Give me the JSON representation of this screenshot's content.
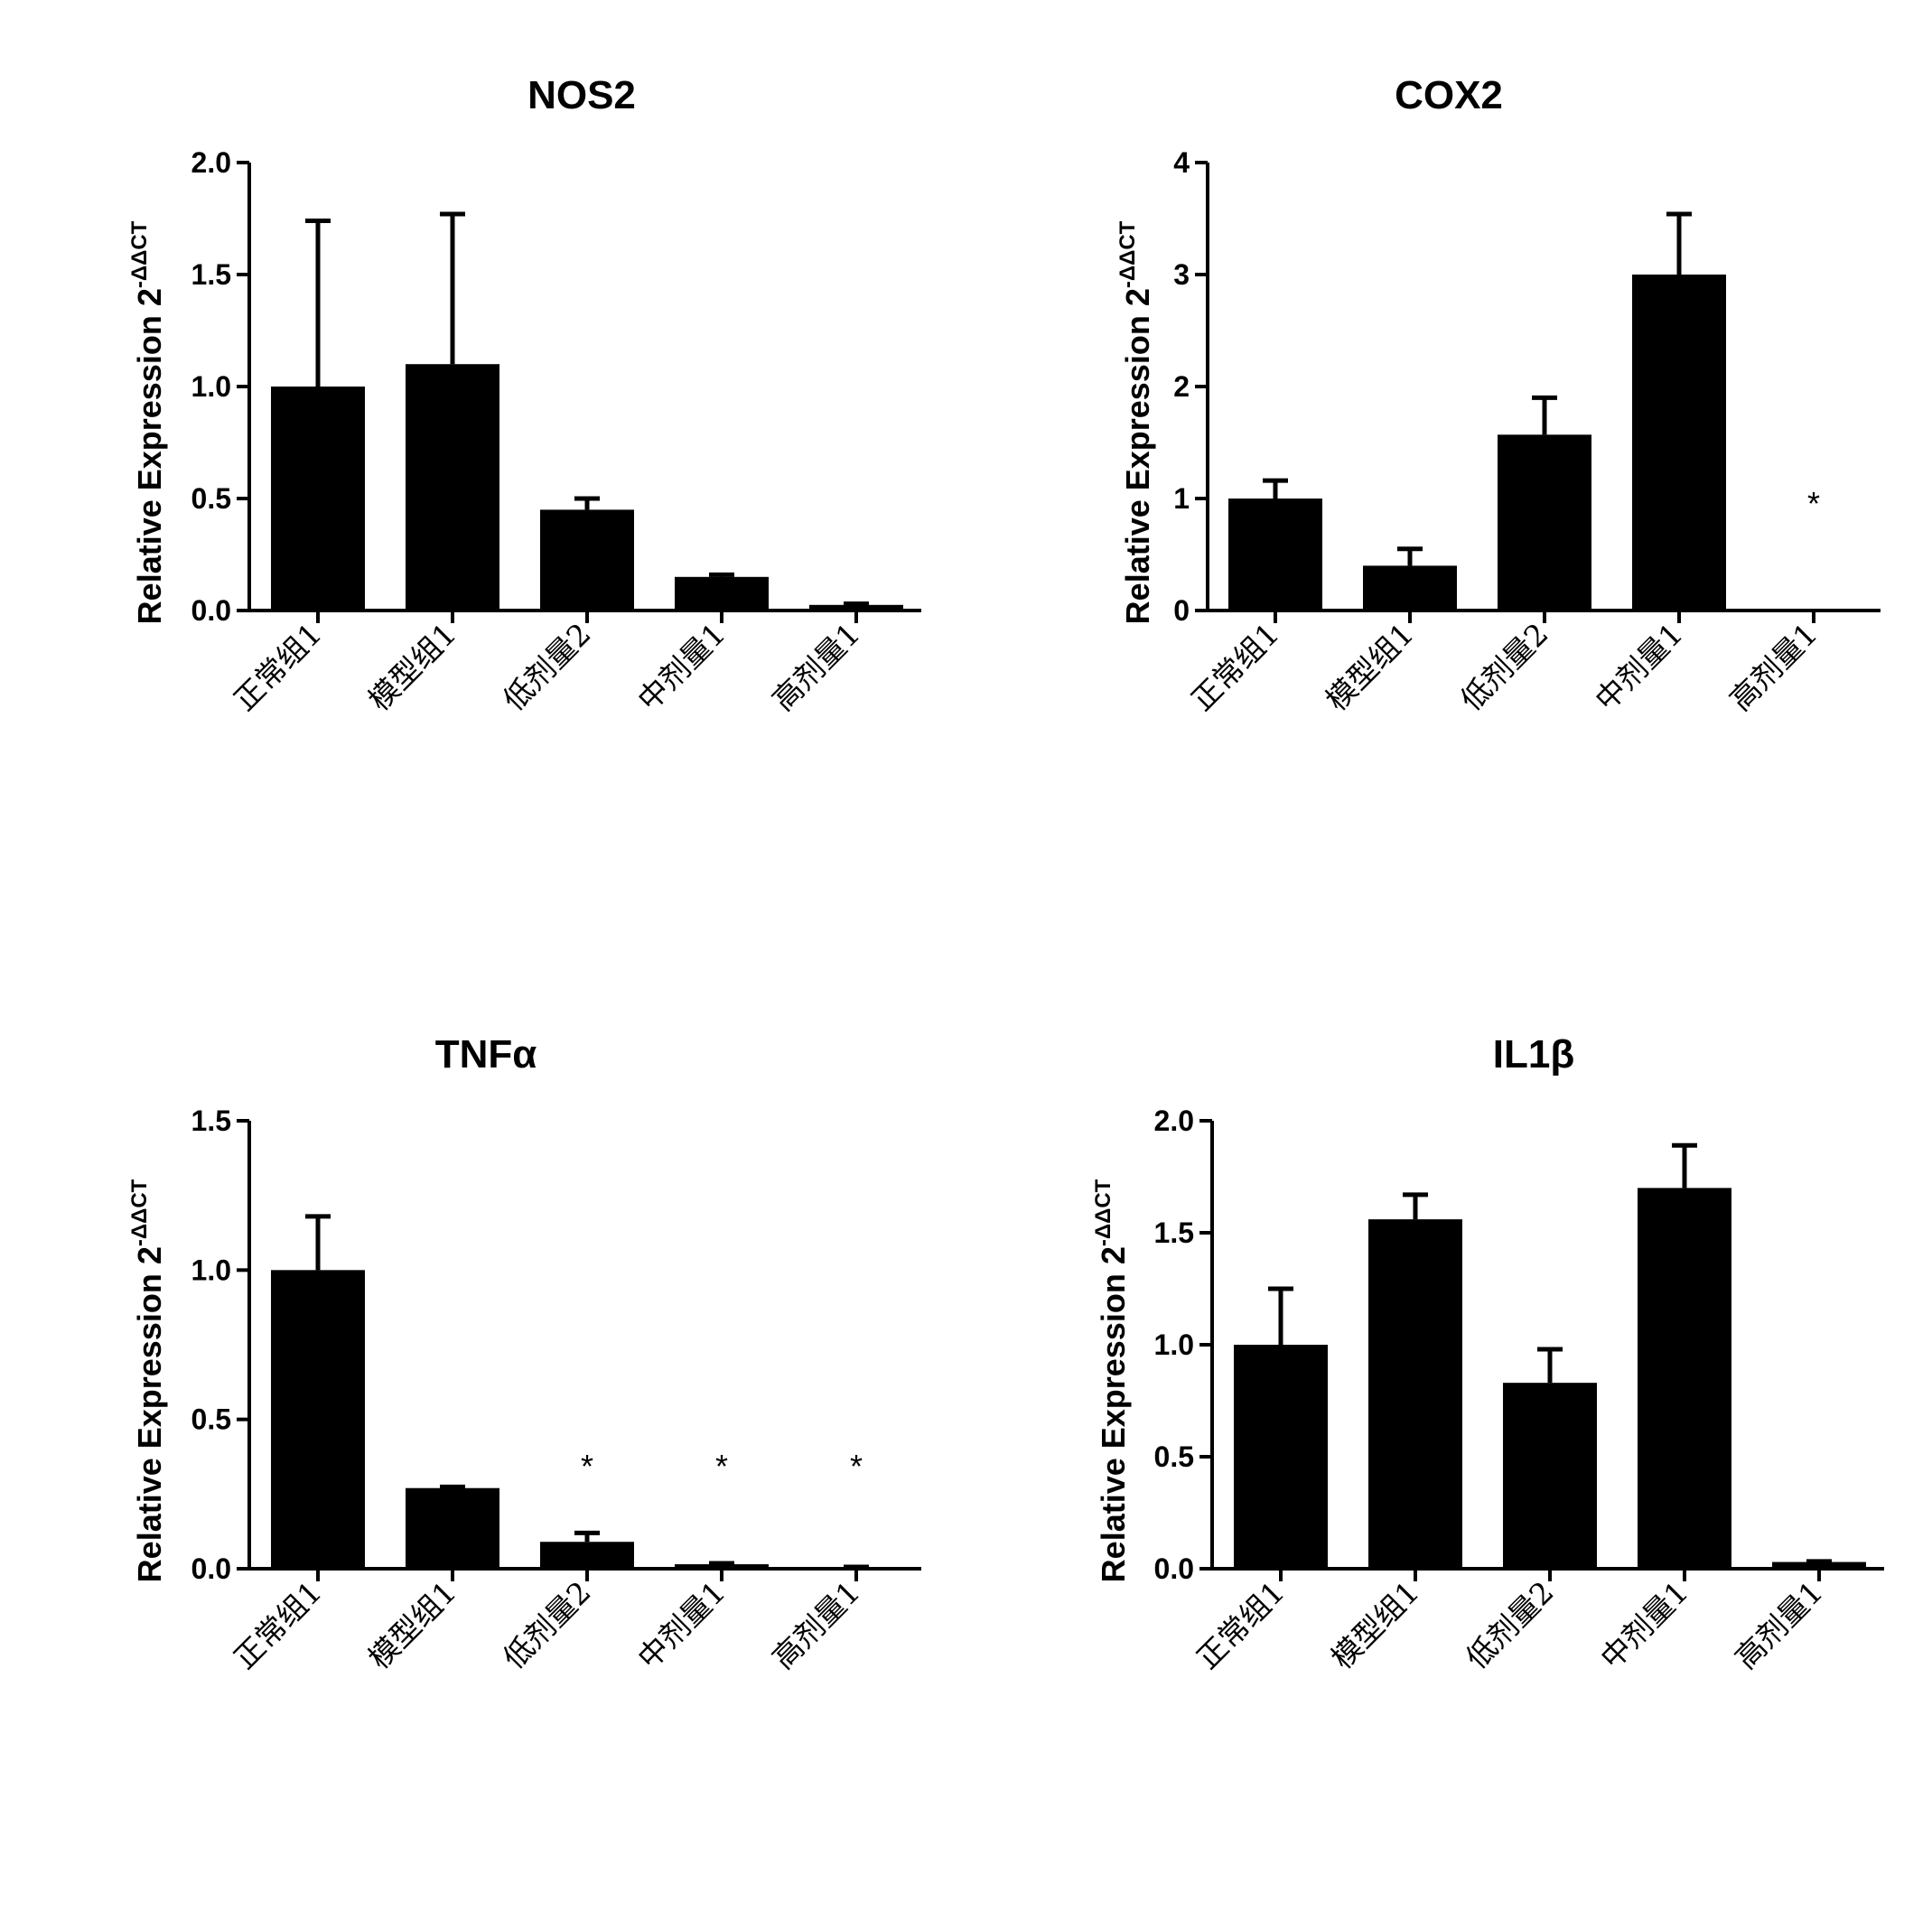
{
  "chart_data": [
    {
      "type": "bar",
      "title": "NOS2",
      "ylabel": "Relative Expression 2",
      "ylabel_superscript": "-ΔΔCT",
      "categories": [
        "正常组1",
        "模型组1",
        "低剂量2",
        "中剂量1",
        "高剂量1"
      ],
      "values": [
        1.0,
        1.1,
        0.45,
        0.15,
        0.025
      ],
      "errors": [
        0.74,
        0.67,
        0.05,
        0.01,
        0.005
      ],
      "ylim": [
        0,
        2.0
      ],
      "yticks": [
        0.0,
        0.5,
        1.0,
        1.5,
        2.0
      ],
      "ytick_labels": [
        "0.0",
        "0.5",
        "1.0",
        "1.5",
        "2.0"
      ],
      "annotations": [],
      "bar_color": "#000000"
    },
    {
      "type": "bar",
      "title": "COX2",
      "ylabel": "Relative Expression 2",
      "ylabel_superscript": "-ΔΔCT",
      "categories": [
        "正常组1",
        "模型组1",
        "低剂量2",
        "中剂量1",
        "高剂量1"
      ],
      "values": [
        1.0,
        0.4,
        1.57,
        3.0,
        0
      ],
      "errors": [
        0.16,
        0.15,
        0.33,
        0.54,
        0
      ],
      "ylim": [
        0,
        4
      ],
      "yticks": [
        0,
        1,
        2,
        3,
        4
      ],
      "ytick_labels": [
        "0",
        "1",
        "2",
        "3",
        "4"
      ],
      "annotations": [
        {
          "index": 4,
          "text": "*",
          "y": 1.0
        }
      ],
      "bar_color": "#000000"
    },
    {
      "type": "bar",
      "title": "TNFα",
      "ylabel": "Relative Expression 2",
      "ylabel_superscript": "-ΔΔCT",
      "categories": [
        "正常组1",
        "模型组1",
        "低剂量2",
        "中剂量1",
        "高剂量1"
      ],
      "values": [
        1.0,
        0.27,
        0.09,
        0.015,
        0.004
      ],
      "errors": [
        0.18,
        0.004,
        0.03,
        0.003,
        0.002
      ],
      "ylim": [
        0,
        1.5
      ],
      "yticks": [
        0.0,
        0.5,
        1.0,
        1.5
      ],
      "ytick_labels": [
        "0.0",
        "0.5",
        "1.0",
        "1.5"
      ],
      "annotations": [
        {
          "index": 2,
          "text": "*",
          "y": 0.36
        },
        {
          "index": 3,
          "text": "*",
          "y": 0.36
        },
        {
          "index": 4,
          "text": "*",
          "y": 0.36
        }
      ],
      "bar_color": "#000000"
    },
    {
      "type": "bar",
      "title": "IL1β",
      "ylabel": "Relative Expression 2",
      "ylabel_superscript": "-ΔΔCT",
      "categories": [
        "正常组1",
        "模型组1",
        "低剂量2",
        "中剂量1",
        "高剂量1"
      ],
      "values": [
        1.0,
        1.56,
        0.83,
        1.7,
        0.03
      ],
      "errors": [
        0.25,
        0.11,
        0.15,
        0.19,
        0.003
      ],
      "ylim": [
        0,
        2.0
      ],
      "yticks": [
        0.0,
        0.5,
        1.0,
        1.5,
        2.0
      ],
      "ytick_labels": [
        "0.0",
        "0.5",
        "1.0",
        "1.5",
        "2.0"
      ],
      "annotations": [],
      "bar_color": "#000000"
    }
  ]
}
